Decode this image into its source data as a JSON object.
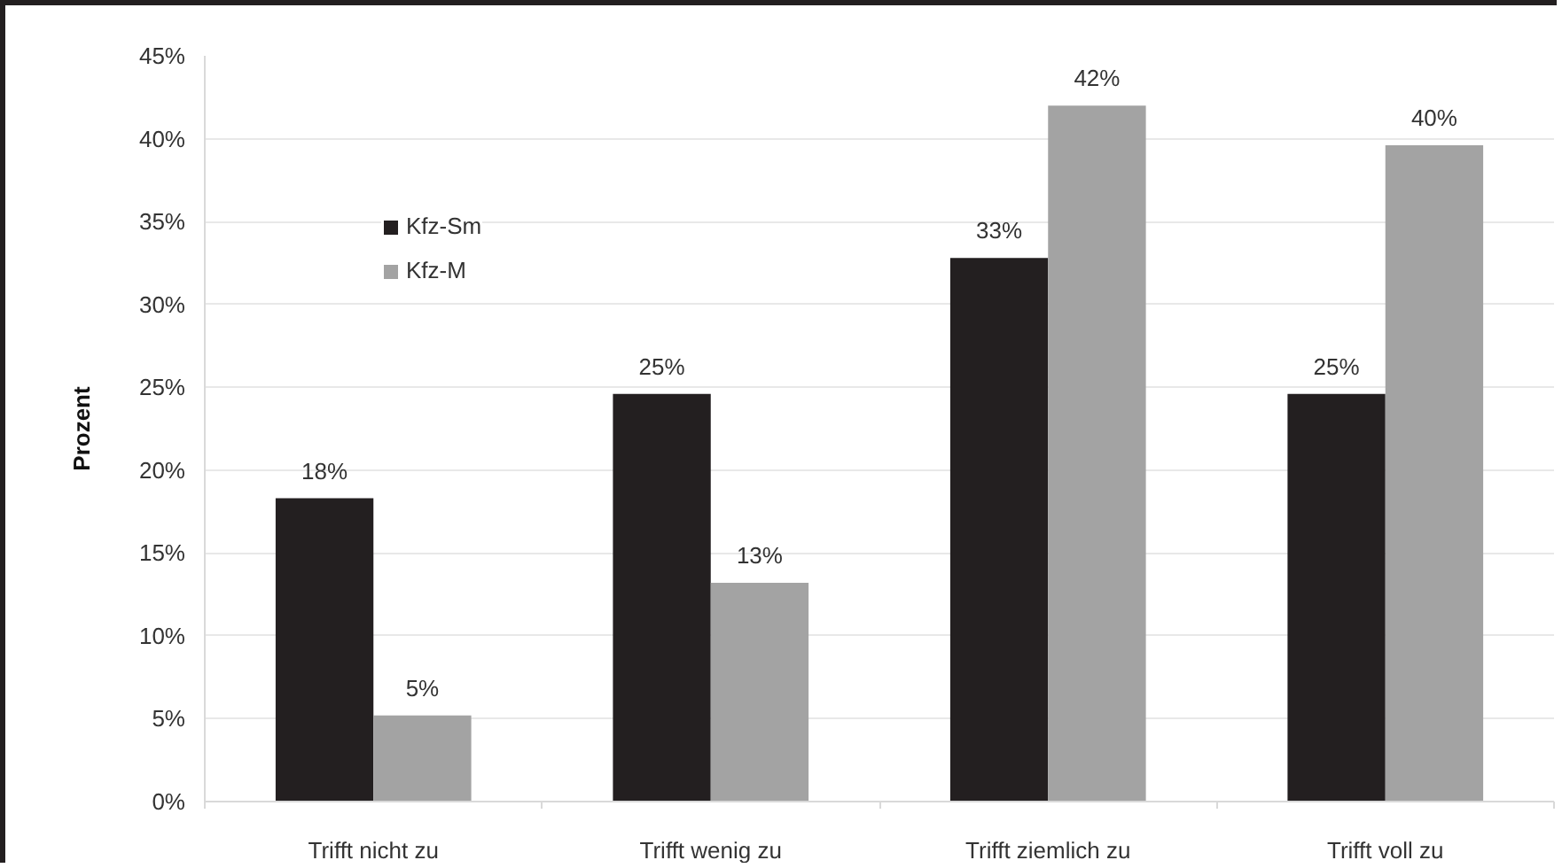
{
  "chart_data": {
    "type": "bar",
    "ylabel": "Prozent",
    "categories": [
      "Trifft nicht zu",
      "Trifft wenig zu",
      "Trifft ziemlich zu",
      "Trifft voll zu"
    ],
    "series": [
      {
        "name": "Kfz-Sm",
        "color": "#231f20",
        "values": [
          18.3,
          24.6,
          32.8,
          24.6
        ],
        "value_labels": [
          "18%",
          "25%",
          "33%",
          "25%"
        ]
      },
      {
        "name": "Kfz-M",
        "color": "#a3a3a3",
        "values": [
          5.2,
          13.2,
          42.0,
          39.6
        ],
        "value_labels": [
          "5%",
          "13%",
          "42%",
          "40%"
        ]
      }
    ],
    "ylim": [
      0,
      45
    ],
    "yticks": [
      {
        "value": 0,
        "label": "0%"
      },
      {
        "value": 5,
        "label": "5%"
      },
      {
        "value": 10,
        "label": "10%"
      },
      {
        "value": 15,
        "label": "15%"
      },
      {
        "value": 20,
        "label": "20%"
      },
      {
        "value": 25,
        "label": "25%"
      },
      {
        "value": 30,
        "label": "30%"
      },
      {
        "value": 35,
        "label": "35%"
      },
      {
        "value": 40,
        "label": "40%"
      },
      {
        "value": 45,
        "label": "45%"
      }
    ],
    "grid": "y",
    "legend": "top left"
  }
}
